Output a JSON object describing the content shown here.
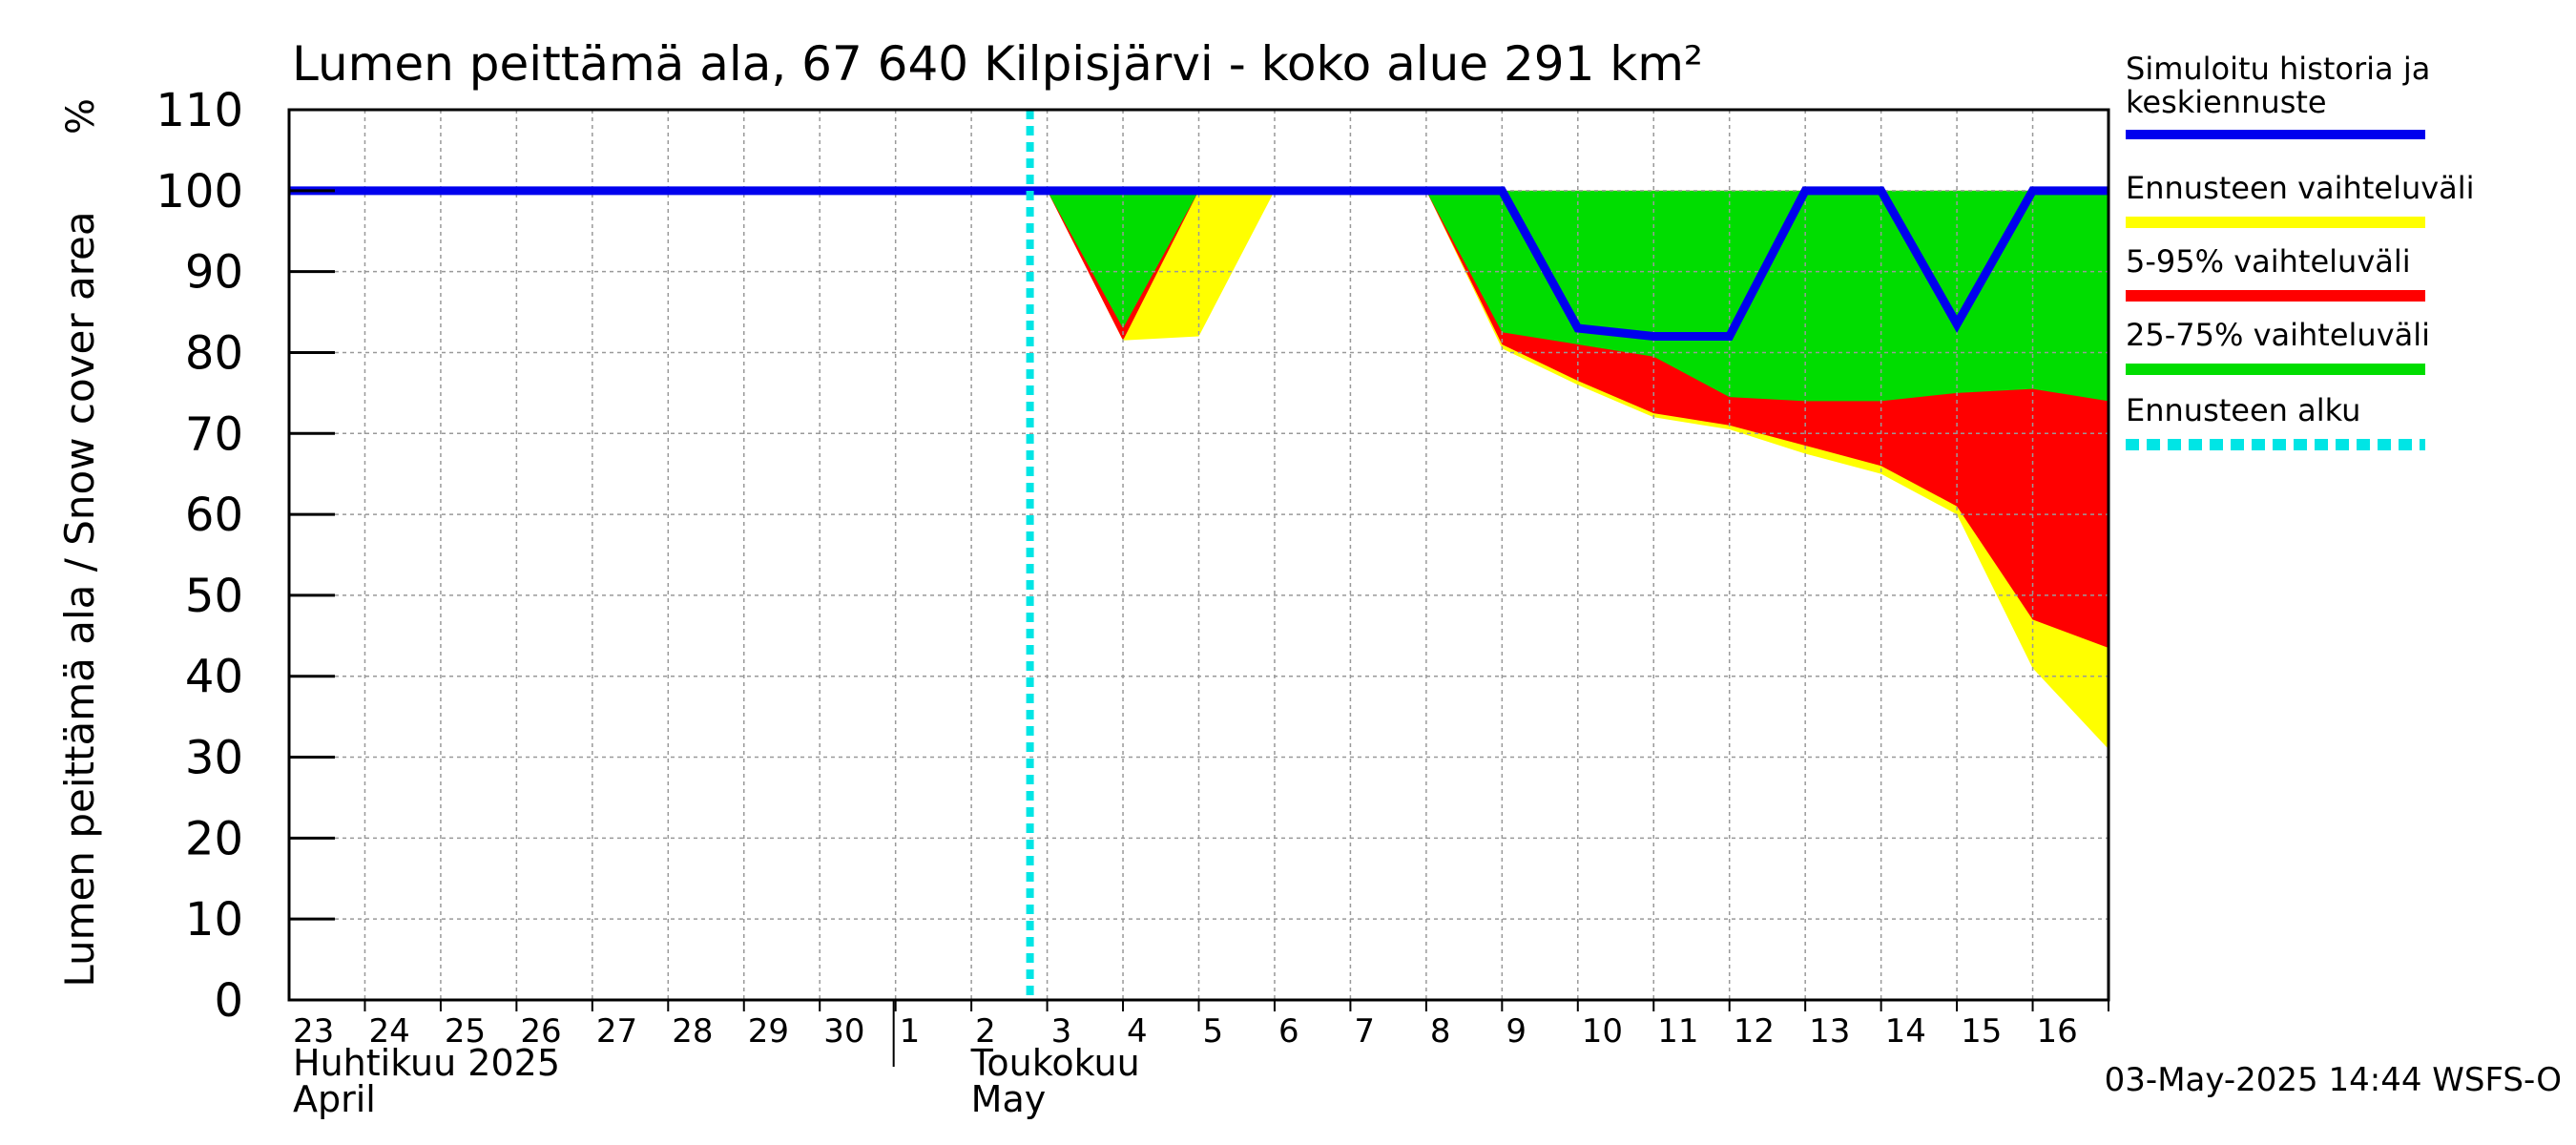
{
  "chart_data": {
    "type": "area",
    "title": "Lumen peittämä ala, 67 640 Kilpisjärvi - koko alue 291 km²",
    "ylabel": "Lumen peittämä ala / Snow cover area",
    "yunit": "%",
    "ylim": [
      0,
      110
    ],
    "yticks": [
      0,
      10,
      20,
      30,
      40,
      50,
      60,
      70,
      80,
      90,
      100,
      110
    ],
    "grid": true,
    "legend_position": "right",
    "xticks": [
      "23",
      "24",
      "25",
      "26",
      "27",
      "28",
      "29",
      "30",
      "1",
      "2",
      "3",
      "4",
      "5",
      "6",
      "7",
      "8",
      "9",
      "10",
      "11",
      "12",
      "13",
      "14",
      "15",
      "16"
    ],
    "month_labels": [
      {
        "name_fi": "Huhtikuu  2025",
        "name_en": "April"
      },
      {
        "name_fi": "Toukokuu",
        "name_en": "May"
      }
    ],
    "forecast_start": "3",
    "footer": "03-May-2025 14:44 WSFS-O",
    "x": [
      "23",
      "24",
      "25",
      "26",
      "27",
      "28",
      "29",
      "30",
      "1",
      "2",
      "3",
      "4",
      "5",
      "6",
      "7",
      "8",
      "9",
      "10",
      "11",
      "12",
      "13",
      "14",
      "15",
      "16",
      "17"
    ],
    "series": [
      {
        "name": "Ennusteen vaihteluväli",
        "color": "#ffff00",
        "kind": "band",
        "upper": [
          100,
          100,
          100,
          100,
          100,
          100,
          100,
          100,
          100,
          100,
          100,
          100,
          100,
          100,
          100,
          100,
          100,
          100,
          100,
          100,
          100,
          100,
          100,
          100,
          100
        ],
        "lower": [
          100,
          100,
          100,
          100,
          100,
          100,
          100,
          100,
          100,
          100,
          100,
          81.5,
          82,
          100,
          100,
          100,
          80.5,
          76,
          72,
          70.5,
          67.5,
          65,
          60,
          41,
          31
        ]
      },
      {
        "name": "5-95% vaihteluväli",
        "color": "#ff0000",
        "kind": "band",
        "upper": [
          100,
          100,
          100,
          100,
          100,
          100,
          100,
          100,
          100,
          100,
          100,
          100,
          100,
          100,
          100,
          100,
          100,
          100,
          100,
          100,
          100,
          100,
          100,
          100,
          100
        ],
        "lower": [
          100,
          100,
          100,
          100,
          100,
          100,
          100,
          100,
          100,
          100,
          100,
          81.5,
          100,
          100,
          100,
          100,
          81,
          76.5,
          72.5,
          71,
          68.5,
          66,
          61,
          47,
          43.5
        ]
      },
      {
        "name": "25-75% vaihteluväli",
        "color": "#00dd00",
        "kind": "band",
        "upper": [
          100,
          100,
          100,
          100,
          100,
          100,
          100,
          100,
          100,
          100,
          100,
          100,
          100,
          100,
          100,
          100,
          100,
          100,
          100,
          100,
          100,
          100,
          100,
          100,
          100
        ],
        "lower": [
          100,
          100,
          100,
          100,
          100,
          100,
          100,
          100,
          100,
          100,
          100,
          83,
          100,
          100,
          100,
          100,
          82.5,
          81,
          79.5,
          74.5,
          74,
          74,
          75,
          75.5,
          74
        ]
      },
      {
        "name": "Simuloitu historia ja keskiennuste",
        "color": "#0000ee",
        "kind": "line",
        "values": [
          100,
          100,
          100,
          100,
          100,
          100,
          100,
          100,
          100,
          100,
          100,
          100,
          100,
          100,
          100,
          100,
          100,
          83,
          82,
          82,
          100,
          100,
          83.5,
          100,
          100
        ]
      },
      {
        "name": "Ennusteen alku",
        "color": "#00e5e5",
        "kind": "vline",
        "at": "3"
      }
    ]
  }
}
